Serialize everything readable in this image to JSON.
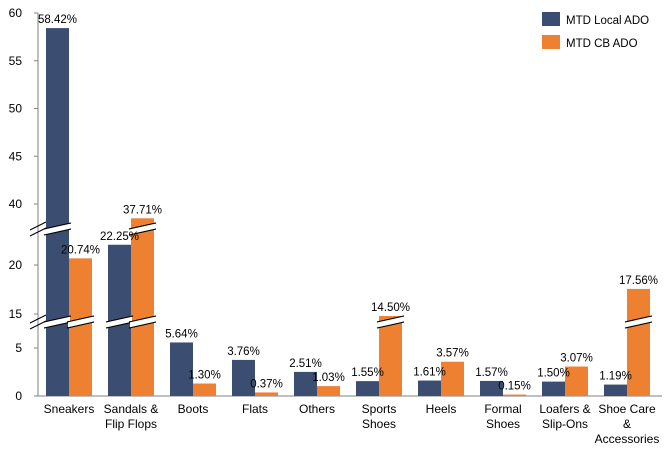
{
  "chart_data": {
    "type": "bar",
    "categories": [
      [
        "Sneakers"
      ],
      [
        "Sandals &",
        "Flip Flops"
      ],
      [
        "Boots"
      ],
      [
        "Flats"
      ],
      [
        "Others"
      ],
      [
        "Sports",
        "Shoes"
      ],
      [
        "Heels"
      ],
      [
        "Formal",
        "Shoes"
      ],
      [
        "Loafers &",
        "Slip-Ons"
      ],
      [
        "Shoe Care",
        "&",
        "Accessories"
      ]
    ],
    "series": [
      {
        "name": "MTD Local ADO",
        "color": "#3B4E72",
        "values": [
          58.42,
          22.25,
          5.64,
          3.76,
          2.51,
          1.55,
          1.61,
          1.57,
          1.5,
          1.19
        ],
        "labels": [
          "58.42%",
          "22.25%",
          "5.64%",
          "3.76%",
          "2.51%",
          "1.55%",
          "1.61%",
          "1.57%",
          "1.50%",
          "1.19%"
        ]
      },
      {
        "name": "MTD CB ADO",
        "color": "#ED8131",
        "values": [
          20.74,
          37.71,
          1.3,
          0.37,
          1.03,
          14.5,
          3.57,
          0.15,
          3.07,
          17.56
        ],
        "labels": [
          "20.74%",
          "37.71%",
          "1.30%",
          "0.37%",
          "1.03%",
          "14.50%",
          "3.57%",
          "0.15%",
          "3.07%",
          "17.56%"
        ]
      }
    ],
    "y_ticks": [
      "0",
      "5",
      "15",
      "20",
      "40",
      "45",
      "50",
      "55",
      "60"
    ],
    "y_axis_segments": [
      [
        0,
        8
      ],
      [
        13,
        24
      ],
      [
        36,
        60
      ]
    ],
    "ylim": [
      0,
      60
    ],
    "legend_position": "top-right",
    "grid": false
  }
}
